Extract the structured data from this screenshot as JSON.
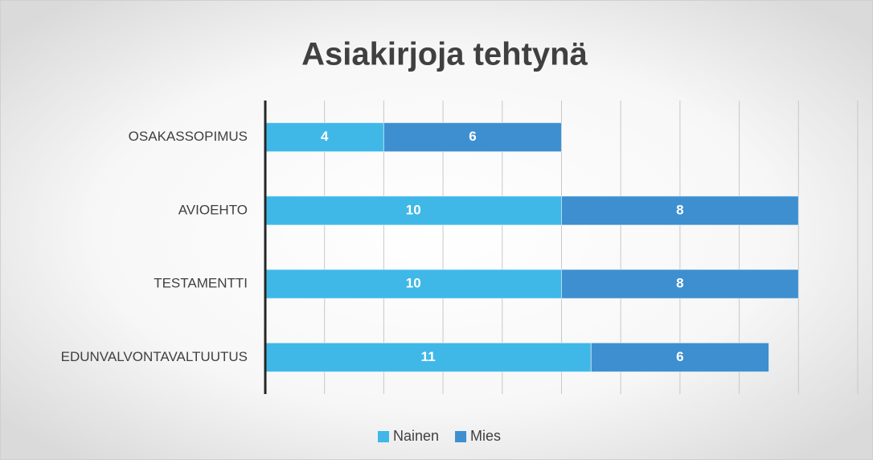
{
  "chart_data": {
    "type": "stacked_barh",
    "title": "Asiakirjoja tehtynä",
    "categories": [
      "OSAKASSOPIMUS",
      "AVIOEHTO",
      "TESTAMENTTI",
      "EDUNVALVONTAVALTUUTUS"
    ],
    "series": [
      {
        "name": "Nainen",
        "color": "#3fb8e8",
        "values": [
          4,
          10,
          10,
          11
        ]
      },
      {
        "name": "Mies",
        "color": "#3d8fd0",
        "values": [
          6,
          8,
          8,
          6
        ]
      }
    ],
    "xlim": [
      0,
      20
    ],
    "xticks": [
      0,
      2,
      4,
      6,
      8,
      10,
      12,
      14,
      16,
      18,
      20
    ],
    "grid": true,
    "legend": "bottom"
  }
}
